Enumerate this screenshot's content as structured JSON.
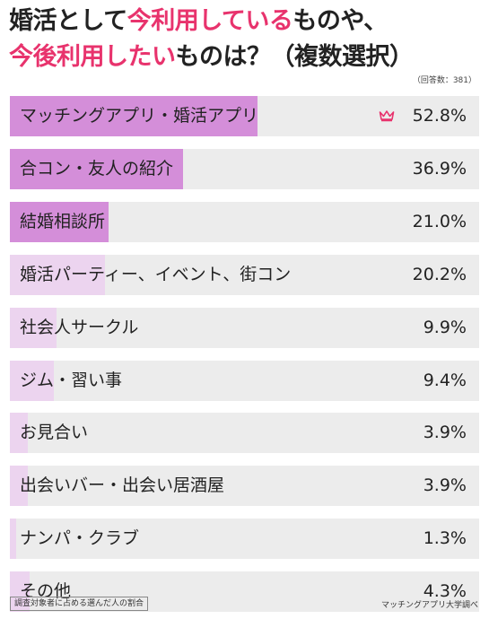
{
  "title": {
    "line1_part1": "婚活として",
    "line1_highlight": "今利用している",
    "line1_part2": "ものや、",
    "line2_highlight": "今後利用したい",
    "line2_part2": "ものは？（複数選択）"
  },
  "note": "（回答数：381）",
  "colors": {
    "bar": "#d48ed9",
    "bar_light": "#ecd4ef",
    "track": "#ececec",
    "highlight": "#e8336d"
  },
  "chart_data": {
    "type": "bar",
    "orientation": "horizontal",
    "xlim": [
      0,
      100
    ],
    "categories": [
      "マッチングアプリ・婚活アプリ",
      "合コン・友人の紹介",
      "結婚相談所",
      "婚活パーティー、イベント、街コン",
      "社会人サークル",
      "ジム・習い事",
      "お見合い",
      "出会いバー・出会い居酒屋",
      "ナンパ・クラブ",
      "その他"
    ],
    "values": [
      52.8,
      36.9,
      21.0,
      20.2,
      9.9,
      9.4,
      3.9,
      3.9,
      1.3,
      4.3
    ],
    "value_labels": [
      "52.8%",
      "36.9%",
      "21.0%",
      "20.2%",
      "9.9%",
      "9.4%",
      "3.9%",
      "3.9%",
      "1.3%",
      "4.3%"
    ]
  },
  "footer": {
    "left": "調査対象者に占める選んだ人の割合",
    "right": "マッチングアプリ大学調べ"
  }
}
